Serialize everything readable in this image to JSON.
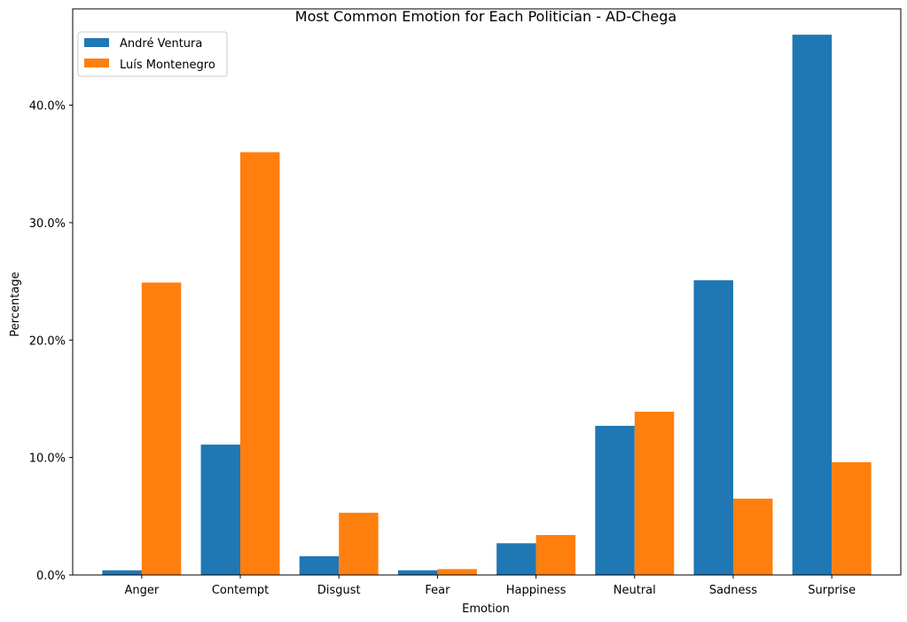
{
  "chart_data": {
    "type": "bar",
    "title": "Most Common Emotion for Each Politician - AD-Chega",
    "xlabel": "Emotion",
    "ylabel": "Percentage",
    "categories": [
      "Anger",
      "Contempt",
      "Disgust",
      "Fear",
      "Happiness",
      "Neutral",
      "Sadness",
      "Surprise"
    ],
    "series": [
      {
        "name": "André Ventura",
        "color": "#1f77b4",
        "values": [
          0.4,
          11.1,
          1.6,
          0.4,
          2.7,
          12.7,
          25.1,
          46.0
        ]
      },
      {
        "name": "Luís Montenegro",
        "color": "#ff7f0e",
        "values": [
          24.9,
          36.0,
          5.3,
          0.5,
          3.4,
          13.9,
          6.5,
          9.6
        ]
      }
    ],
    "ylim": [
      0,
      48.2
    ],
    "yticks": [
      0,
      10,
      20,
      30,
      40
    ],
    "ytick_labels": [
      "0.0%",
      "10.0%",
      "20.0%",
      "30.0%",
      "40.0%"
    ],
    "legend_position": "top-left",
    "grid": false
  }
}
